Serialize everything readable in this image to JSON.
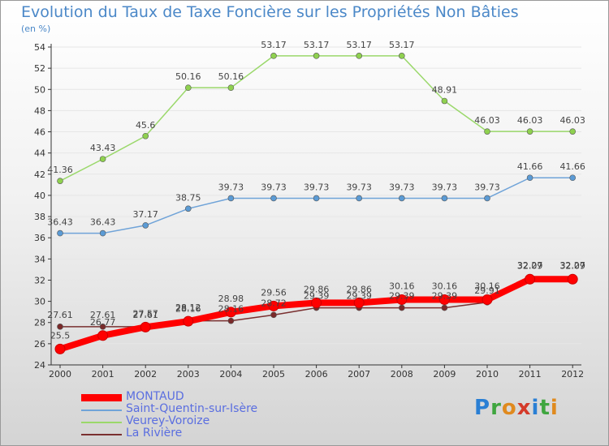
{
  "header": {
    "title": "Evolution du Taux de Taxe Foncière sur les Propriétés Non Bâties",
    "subtitle": "(en %)"
  },
  "logo": {
    "text": "Proxiti",
    "letters": [
      "P",
      "r",
      "o",
      "x",
      "i",
      "t",
      "i"
    ],
    "colors": [
      "#2a7fd4",
      "#3fa63f",
      "#e08a1e",
      "#d43a2a",
      "#2a7fd4",
      "#3fa63f",
      "#e08a1e"
    ]
  },
  "chart_data": {
    "type": "line",
    "title": "Evolution du Taux de Taxe Foncière sur les Propriétés Non Bâties",
    "ylabel": "(en %)",
    "xlabel": "",
    "x": [
      "2000",
      "2001",
      "2002",
      "2003",
      "2004",
      "2005",
      "2006",
      "2007",
      "2008",
      "2009",
      "2010",
      "2011",
      "2012"
    ],
    "ylim": [
      24,
      54
    ],
    "yticks": [
      24,
      26,
      28,
      30,
      32,
      34,
      36,
      38,
      40,
      42,
      44,
      46,
      48,
      50,
      52,
      54
    ],
    "grid": "horizontal",
    "legend_position": "bottom-left",
    "series": [
      {
        "name": "MONTAUD",
        "color": "#ff0000",
        "values": [
          25.5,
          26.77,
          27.57,
          28.12,
          28.98,
          29.56,
          29.86,
          29.86,
          30.16,
          30.16,
          30.16,
          32.09,
          32.09
        ],
        "labels": [
          "25.5",
          "26.77",
          "27.57",
          "28.12",
          "28.98",
          "29.56",
          "29.86",
          "29.86",
          "30.16",
          "30.16",
          "30.16",
          "32.09",
          "32.09"
        ]
      },
      {
        "name": "Saint-Quentin-sur-Isère",
        "color": "#5b9bd5",
        "values": [
          36.43,
          36.43,
          37.17,
          38.75,
          39.73,
          39.73,
          39.73,
          39.73,
          39.73,
          39.73,
          39.73,
          41.66,
          41.66
        ],
        "labels": [
          "36.43",
          "36.43",
          "37.17",
          "38.75",
          "39.73",
          "39.73",
          "39.73",
          "39.73",
          "39.73",
          "39.73",
          "39.73",
          "41.66",
          "41.66"
        ]
      },
      {
        "name": "Veurey-Voroize",
        "color": "#8fd14f",
        "values": [
          41.36,
          43.43,
          45.6,
          50.16,
          50.16,
          53.17,
          53.17,
          53.17,
          53.17,
          48.91,
          46.03,
          46.03,
          46.03
        ],
        "labels": [
          "41.36",
          "43.43",
          "45.6",
          "50.16",
          "50.16",
          "53.17",
          "53.17",
          "53.17",
          "53.17",
          "48.91",
          "46.03",
          "46.03",
          "46.03"
        ]
      },
      {
        "name": "La Rivière",
        "color": "#8b3a3a",
        "values": [
          27.61,
          27.61,
          27.61,
          28.16,
          28.16,
          28.72,
          29.39,
          29.39,
          29.39,
          29.39,
          29.91,
          32.27,
          32.27
        ],
        "labels": [
          "27.61",
          "27.61",
          "27.61",
          "28.16",
          "28.16",
          "28.72",
          "29.39",
          "29.39",
          "29.39",
          "29.39",
          "29.91",
          "32.27",
          "32.27"
        ]
      }
    ]
  }
}
